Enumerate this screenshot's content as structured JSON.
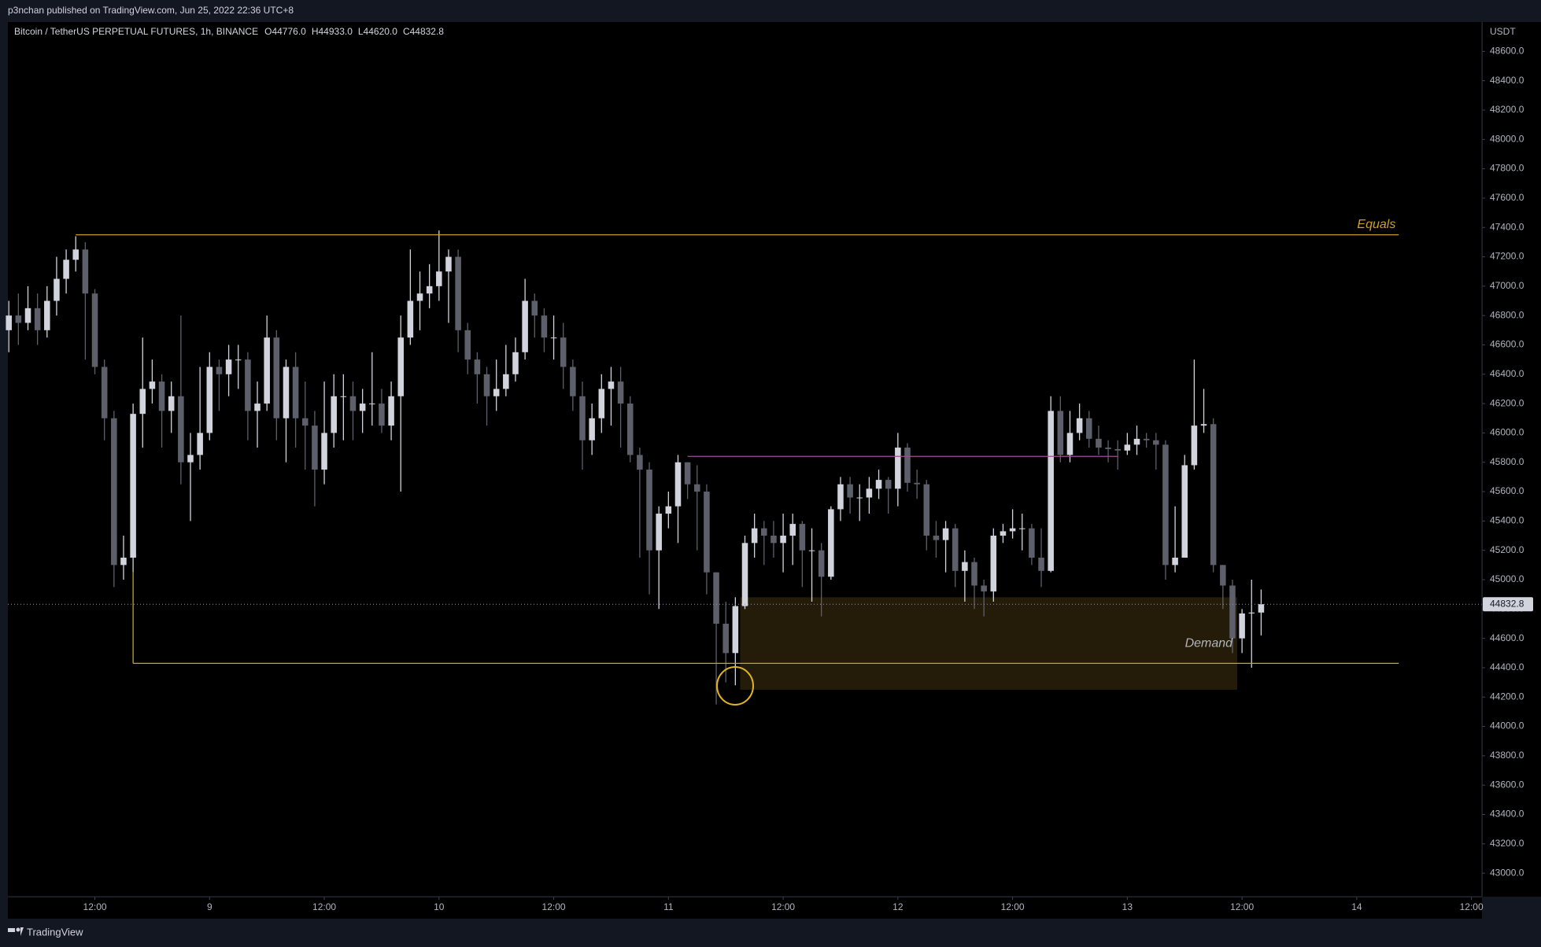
{
  "header": {
    "publisher": "p3nchan published on TradingView.com, Jun 25, 2022 22:36 UTC+8",
    "footer": "TradingView"
  },
  "chart_data": {
    "type": "candlestick",
    "symbol": "Bitcoin / TetherUS PERPETUAL FUTURES, 1h, BINANCE",
    "ohlc_labels": [
      "O44776.0",
      "H44933.0",
      "L44620.0",
      "C44832.8"
    ],
    "currency": "USDT",
    "up_color": "#d1d4dc",
    "down_color": "#5d606b",
    "xlim": [
      -0.1,
      154.1
    ],
    "xticks": [
      {
        "value": 9,
        "label": "12:00"
      },
      {
        "value": 21,
        "label": "9"
      },
      {
        "value": 33,
        "label": "12:00"
      },
      {
        "value": 45,
        "label": "10"
      },
      {
        "value": 57,
        "label": "12:00"
      },
      {
        "value": 69,
        "label": "11"
      },
      {
        "value": 81,
        "label": "12:00"
      },
      {
        "value": 93,
        "label": "12"
      },
      {
        "value": 105,
        "label": "12:00"
      },
      {
        "value": 117,
        "label": "13"
      },
      {
        "value": 129,
        "label": "12:00"
      },
      {
        "value": 141,
        "label": "14"
      },
      {
        "value": 153,
        "label": "12:00"
      }
    ],
    "ylim": [
      42840,
      48800
    ],
    "yticks": [
      {
        "value": 43000,
        "label": "43000.0"
      },
      {
        "value": 43200,
        "label": "43200.0"
      },
      {
        "value": 43400,
        "label": "43400.0"
      },
      {
        "value": 43600,
        "label": "43600.0"
      },
      {
        "value": 43800,
        "label": "43800.0"
      },
      {
        "value": 44000,
        "label": "44000.0"
      },
      {
        "value": 44200,
        "label": "44200.0"
      },
      {
        "value": 44400,
        "label": "44400.0"
      },
      {
        "value": 44600,
        "label": "44600.0"
      },
      {
        "value": 44800,
        "label": "44800.0"
      },
      {
        "value": 45000,
        "label": "45000.0"
      },
      {
        "value": 45200,
        "label": "45200.0"
      },
      {
        "value": 45400,
        "label": "45400.0"
      },
      {
        "value": 45600,
        "label": "45600.0"
      },
      {
        "value": 45800,
        "label": "45800.0"
      },
      {
        "value": 46000,
        "label": "46000.0"
      },
      {
        "value": 46200,
        "label": "46200.0"
      },
      {
        "value": 46400,
        "label": "46400.0"
      },
      {
        "value": 46600,
        "label": "46600.0"
      },
      {
        "value": 46800,
        "label": "46800.0"
      },
      {
        "value": 47000,
        "label": "47000.0"
      },
      {
        "value": 47200,
        "label": "47200.0"
      },
      {
        "value": 47400,
        "label": "47400.0"
      },
      {
        "value": 47600,
        "label": "47600.0"
      },
      {
        "value": 47800,
        "label": "47800.0"
      },
      {
        "value": 48000,
        "label": "48000.0"
      },
      {
        "value": 48200,
        "label": "48200.0"
      },
      {
        "value": 48400,
        "label": "48400.0"
      },
      {
        "value": 48600,
        "label": "48600.0"
      }
    ],
    "open": [
      46700,
      46800,
      46750,
      46850,
      46700,
      46900,
      47050,
      47180,
      47250,
      46950,
      46450,
      46100,
      45100,
      45150,
      46130,
      46300,
      46350,
      46150,
      46250,
      45800,
      45850,
      46000,
      46450,
      46400,
      46500,
      46500,
      46150,
      46200,
      46650,
      46100,
      46450,
      46100,
      46050,
      45750,
      46000,
      46250,
      46250,
      46150,
      46200,
      46200,
      46050,
      46250,
      46650,
      46900,
      46950,
      47000,
      47100,
      47200,
      46700,
      46500,
      46400,
      46250,
      46300,
      46400,
      46550,
      46900,
      46800,
      46650,
      46650,
      46450,
      46250,
      45950,
      46100,
      46300,
      46350,
      46200,
      45850,
      45750,
      45200,
      45450,
      45500,
      45800,
      45650,
      45600,
      45050,
      44700,
      44500,
      44820,
      45250,
      45350,
      45300,
      45250,
      45300,
      45380,
      45200,
      45200,
      45020,
      45480,
      45650,
      45560,
      45560,
      45620,
      45680,
      45620,
      45900,
      45660,
      45650,
      45300,
      45270,
      45350,
      45060,
      45120,
      44960,
      44920,
      45300,
      45330,
      45350,
      45350,
      45150,
      45060,
      46150,
      45850,
      46000,
      46100,
      45960,
      45900,
      45890,
      45880,
      45920,
      45960,
      45950,
      45920,
      45100,
      45150,
      45780,
      46050,
      46060,
      45100,
      44960,
      44600,
      44770,
      44776
    ],
    "high": [
      46900,
      46950,
      47000,
      46950,
      47000,
      47200,
      47250,
      47340,
      47300,
      46980,
      46500,
      46150,
      45300,
      46200,
      46650,
      46500,
      46400,
      46350,
      46800,
      46000,
      46450,
      46550,
      46500,
      46600,
      46600,
      46550,
      46350,
      46800,
      46700,
      46500,
      46550,
      46350,
      46150,
      46350,
      46400,
      46400,
      46350,
      46300,
      46550,
      46300,
      46350,
      46800,
      47250,
      47100,
      47150,
      47380,
      47250,
      47250,
      46750,
      46550,
      46450,
      46500,
      46600,
      46650,
      47050,
      46950,
      46850,
      46800,
      46750,
      46500,
      46350,
      46200,
      46400,
      46450,
      46450,
      46250,
      45900,
      45800,
      45500,
      45600,
      45850,
      45800,
      45780,
      45650,
      45050,
      44850,
      44880,
      45300,
      45450,
      45400,
      45400,
      45450,
      45450,
      45400,
      45350,
      45250,
      45500,
      45700,
      45700,
      45650,
      45700,
      45750,
      45700,
      46000,
      45930,
      45750,
      45680,
      45400,
      45400,
      45380,
      45200,
      45150,
      45000,
      45350,
      45380,
      45480,
      45450,
      45380,
      45350,
      46250,
      46250,
      46150,
      46200,
      46150,
      46050,
      45950,
      45950,
      46000,
      46050,
      46000,
      46000,
      45950,
      45500,
      45850,
      46500,
      46300,
      46100,
      45100,
      45000,
      44800,
      45000,
      44933
    ],
    "low": [
      46550,
      46600,
      46700,
      46600,
      46650,
      46800,
      46950,
      47100,
      46500,
      46400,
      45950,
      44950,
      45000,
      45050,
      45900,
      46200,
      45900,
      46000,
      45650,
      45400,
      45750,
      45950,
      46150,
      46250,
      46300,
      45950,
      45900,
      46150,
      45950,
      45800,
      45900,
      45750,
      45500,
      45650,
      45900,
      45950,
      45950,
      46000,
      46050,
      46000,
      45950,
      45600,
      46600,
      46700,
      46850,
      46900,
      46750,
      46550,
      46400,
      46200,
      46050,
      46150,
      46250,
      46350,
      46500,
      46650,
      46550,
      46500,
      46300,
      46150,
      45750,
      45850,
      46000,
      46050,
      45900,
      45800,
      45150,
      44900,
      44800,
      45350,
      45250,
      45550,
      45200,
      44900,
      44150,
      44300,
      44280,
      44800,
      45150,
      45100,
      45150,
      45050,
      45100,
      44950,
      44850,
      44750,
      45000,
      45400,
      45450,
      45400,
      45450,
      45550,
      45450,
      45500,
      45600,
      45550,
      45200,
      45150,
      45050,
      44950,
      44850,
      44800,
      44750,
      44850,
      45250,
      45280,
      45200,
      45100,
      44950,
      45050,
      45800,
      45800,
      45950,
      45900,
      45850,
      45800,
      45750,
      45850,
      45850,
      45900,
      45750,
      45000,
      45050,
      45150,
      45750,
      46000,
      45050,
      44800,
      44500,
      44500,
      44400,
      44620
    ],
    "close": [
      46800,
      46750,
      46850,
      46700,
      46900,
      47050,
      47180,
      47250,
      46950,
      46450,
      46100,
      45100,
      45150,
      46130,
      46300,
      46350,
      46150,
      46250,
      45800,
      45850,
      46000,
      46450,
      46400,
      46500,
      46500,
      46150,
      46200,
      46650,
      46100,
      46450,
      46100,
      46050,
      45750,
      46000,
      46250,
      46250,
      46150,
      46200,
      46200,
      46050,
      46250,
      46650,
      46900,
      46950,
      47000,
      47100,
      47200,
      46700,
      46500,
      46400,
      46250,
      46300,
      46400,
      46550,
      46900,
      46800,
      46650,
      46650,
      46450,
      46250,
      45950,
      46100,
      46300,
      46350,
      46200,
      45850,
      45750,
      45200,
      45450,
      45500,
      45800,
      45650,
      45600,
      45050,
      44700,
      44500,
      44820,
      45250,
      45350,
      45300,
      45250,
      45300,
      45380,
      45200,
      45200,
      45020,
      45480,
      45650,
      45560,
      45560,
      45620,
      45680,
      45620,
      45900,
      45660,
      45650,
      45300,
      45270,
      45350,
      45060,
      45120,
      44960,
      44920,
      45300,
      45330,
      45350,
      45350,
      45150,
      45060,
      46150,
      45850,
      46000,
      46100,
      45960,
      45900,
      45890,
      45880,
      45920,
      45960,
      45950,
      45920,
      45100,
      45150,
      45780,
      46050,
      46060,
      45100,
      44960,
      44600,
      44770,
      44776,
      44832.8
    ],
    "levels": [
      {
        "label": "Equals",
        "value": 47350,
        "x": [
          7,
          145.4
        ],
        "color": "#c9a227"
      },
      {
        "value": 44430,
        "x": [
          13,
          145.4
        ],
        "color": "#c9a227"
      },
      {
        "value": 45840,
        "x": [
          71,
          116
        ],
        "color": "#9c4f96"
      }
    ],
    "zone": {
      "label": "Demand",
      "ylim": [
        44250,
        44880
      ],
      "x": [
        76.5,
        128.5
      ],
      "color": "#2a200a"
    }
  }
}
